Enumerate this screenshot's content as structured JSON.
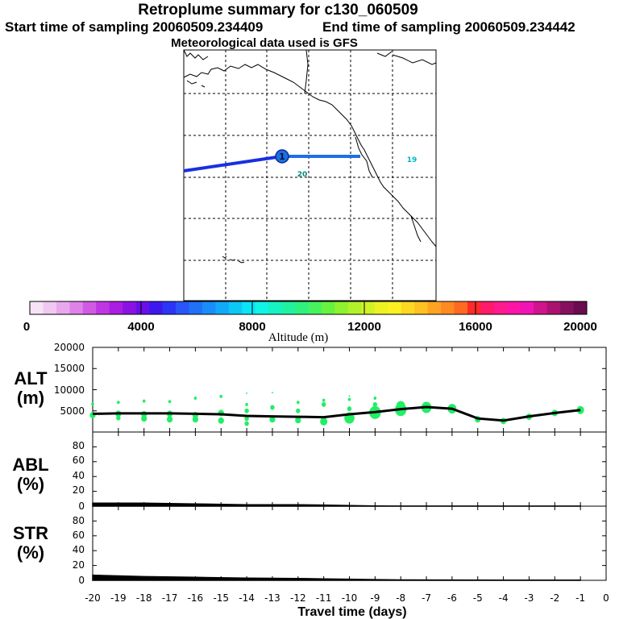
{
  "header": {
    "title": "Retroplume summary for c130_060509",
    "start": "Start time of sampling 20060509.234409",
    "end": "End time of sampling 20060509.234442",
    "met": "Meteorological data used is GFS"
  },
  "map": {
    "markers": [
      {
        "label": "1",
        "color": "#1e6fe0"
      },
      {
        "label": "20",
        "color": "#00887a"
      },
      {
        "label": "19",
        "color": "#00b8c8"
      }
    ]
  },
  "colorbar": {
    "title": "Altitude (m)",
    "tick_labels": [
      "0",
      "4000",
      "8000",
      "12000",
      "16000",
      "20000"
    ],
    "colors": [
      "#f6e3f7",
      "#f0c8f2",
      "#e9a8ee",
      "#de82e8",
      "#d15ae4",
      "#c235e2",
      "#a91ee2",
      "#8a13e4",
      "#6a0fe6",
      "#3d18ee",
      "#2a35f6",
      "#2a55f8",
      "#2070f8",
      "#1a8df8",
      "#10aaf8",
      "#0cc8f4",
      "#0ae4f4",
      "#10f4e6",
      "#16f2c2",
      "#20f2a0",
      "#2ef27e",
      "#46f25e",
      "#66f23e",
      "#8ef22e",
      "#b2f22a",
      "#d0f226",
      "#eef222",
      "#fff022",
      "#ffd822",
      "#ffc222",
      "#ffa422",
      "#ff8a22",
      "#ff6a22",
      "#ff2a2a",
      "#ff1a6a",
      "#ff1a8e",
      "#ff14a8",
      "#f014b4",
      "#d0148c",
      "#aa1270",
      "#861060",
      "#6a0c50"
    ]
  },
  "panels": {
    "alt": {
      "label1": "ALT",
      "label2": "(m)",
      "yticks": [
        "20000",
        "15000",
        "10000",
        "5000"
      ]
    },
    "abl": {
      "label1": "ABL",
      "label2": "(%)",
      "yticks": [
        "80",
        "60",
        "40",
        "20",
        "0"
      ]
    },
    "str": {
      "label1": "STR",
      "label2": "(%)",
      "yticks": [
        "80",
        "60",
        "40",
        "20",
        "0"
      ]
    }
  },
  "xaxis": {
    "label": "Travel time (days)",
    "ticks": [
      "-20",
      "-19",
      "-18",
      "-17",
      "-16",
      "-15",
      "-14",
      "-13",
      "-12",
      "-11",
      "-10",
      "-9",
      "-8",
      "-7",
      "-6",
      "-5",
      "-4",
      "-3",
      "-2",
      "-1",
      "0"
    ]
  },
  "chart_data": [
    {
      "type": "line",
      "title": "ALT (m)",
      "x": [
        -20,
        -19,
        -18,
        -17,
        -16,
        -15,
        -14,
        -13,
        -12,
        -11,
        -10,
        -9,
        -8,
        -7,
        -6,
        -5,
        -4,
        -3,
        -2,
        -1
      ],
      "y": [
        4300,
        4400,
        4400,
        4400,
        4300,
        4200,
        3800,
        3700,
        3600,
        3500,
        4200,
        4700,
        5400,
        5900,
        5500,
        3200,
        2700,
        3700,
        4500,
        5200
      ],
      "ylim": [
        0,
        20000
      ],
      "scatter_points": [
        {
          "x": -20,
          "y": 4000,
          "s": 4
        },
        {
          "x": -20,
          "y": 6600,
          "s": 2
        },
        {
          "x": -19,
          "y": 4300,
          "s": 4
        },
        {
          "x": -19,
          "y": 3300,
          "s": 3
        },
        {
          "x": -19,
          "y": 7000,
          "s": 2
        },
        {
          "x": -18,
          "y": 4200,
          "s": 4
        },
        {
          "x": -18,
          "y": 3200,
          "s": 4
        },
        {
          "x": -18,
          "y": 7300,
          "s": 2
        },
        {
          "x": -17,
          "y": 4300,
          "s": 4
        },
        {
          "x": -17,
          "y": 3000,
          "s": 4
        },
        {
          "x": -17,
          "y": 7200,
          "s": 2
        },
        {
          "x": -16,
          "y": 4000,
          "s": 4
        },
        {
          "x": -16,
          "y": 3000,
          "s": 4
        },
        {
          "x": -16,
          "y": 8000,
          "s": 2
        },
        {
          "x": -15,
          "y": 4500,
          "s": 4
        },
        {
          "x": -15,
          "y": 2700,
          "s": 4
        },
        {
          "x": -15,
          "y": 8400,
          "s": 2
        },
        {
          "x": -14,
          "y": 5000,
          "s": 3
        },
        {
          "x": -14,
          "y": 3200,
          "s": 3
        },
        {
          "x": -14,
          "y": 2000,
          "s": 3
        },
        {
          "x": -14,
          "y": 6500,
          "s": 2
        },
        {
          "x": -14,
          "y": 9200,
          "s": 1
        },
        {
          "x": -13,
          "y": 3000,
          "s": 4
        },
        {
          "x": -13,
          "y": 5800,
          "s": 3
        },
        {
          "x": -13,
          "y": 9300,
          "s": 1
        },
        {
          "x": -12,
          "y": 2800,
          "s": 4
        },
        {
          "x": -12,
          "y": 5000,
          "s": 3
        },
        {
          "x": -12,
          "y": 7000,
          "s": 2
        },
        {
          "x": -11,
          "y": 2500,
          "s": 5
        },
        {
          "x": -11,
          "y": 6500,
          "s": 3
        },
        {
          "x": -11,
          "y": 7500,
          "s": 2
        },
        {
          "x": -10,
          "y": 3300,
          "s": 7
        },
        {
          "x": -10,
          "y": 5500,
          "s": 3
        },
        {
          "x": -10,
          "y": 7700,
          "s": 2
        },
        {
          "x": -10,
          "y": 8500,
          "s": 1
        },
        {
          "x": -9,
          "y": 4600,
          "s": 8
        },
        {
          "x": -9,
          "y": 6500,
          "s": 3
        },
        {
          "x": -9,
          "y": 8000,
          "s": 2
        },
        {
          "x": -8,
          "y": 5300,
          "s": 8
        },
        {
          "x": -8,
          "y": 6200,
          "s": 6
        },
        {
          "x": -7,
          "y": 5800,
          "s": 7
        },
        {
          "x": -6,
          "y": 5500,
          "s": 6
        },
        {
          "x": -5,
          "y": 3000,
          "s": 4
        },
        {
          "x": -4,
          "y": 2600,
          "s": 4
        },
        {
          "x": -3,
          "y": 3600,
          "s": 4
        },
        {
          "x": -2,
          "y": 4500,
          "s": 4
        },
        {
          "x": -1,
          "y": 5200,
          "s": 5
        }
      ]
    },
    {
      "type": "area",
      "title": "ABL (%)",
      "x": [
        -20,
        -18,
        -16,
        -14,
        -12,
        -11,
        -10,
        -9,
        -8,
        -6,
        -4,
        -2,
        -1
      ],
      "y": [
        4,
        4,
        3,
        2,
        2,
        1.5,
        0.8,
        0.3,
        0.1,
        0.1,
        0.1,
        0.1,
        0.1
      ],
      "ylim": [
        0,
        100
      ]
    },
    {
      "type": "area",
      "title": "STR (%)",
      "x": [
        -20,
        -19,
        -18,
        -16,
        -14,
        -12,
        -11,
        -10,
        -9,
        -8,
        -6,
        -4,
        -2,
        -1
      ],
      "y": [
        7,
        6,
        5,
        4,
        3,
        2.5,
        2,
        1.5,
        1,
        0.5,
        0.4,
        0.3,
        0.3,
        0.3
      ],
      "ylim": [
        0,
        100
      ]
    }
  ]
}
